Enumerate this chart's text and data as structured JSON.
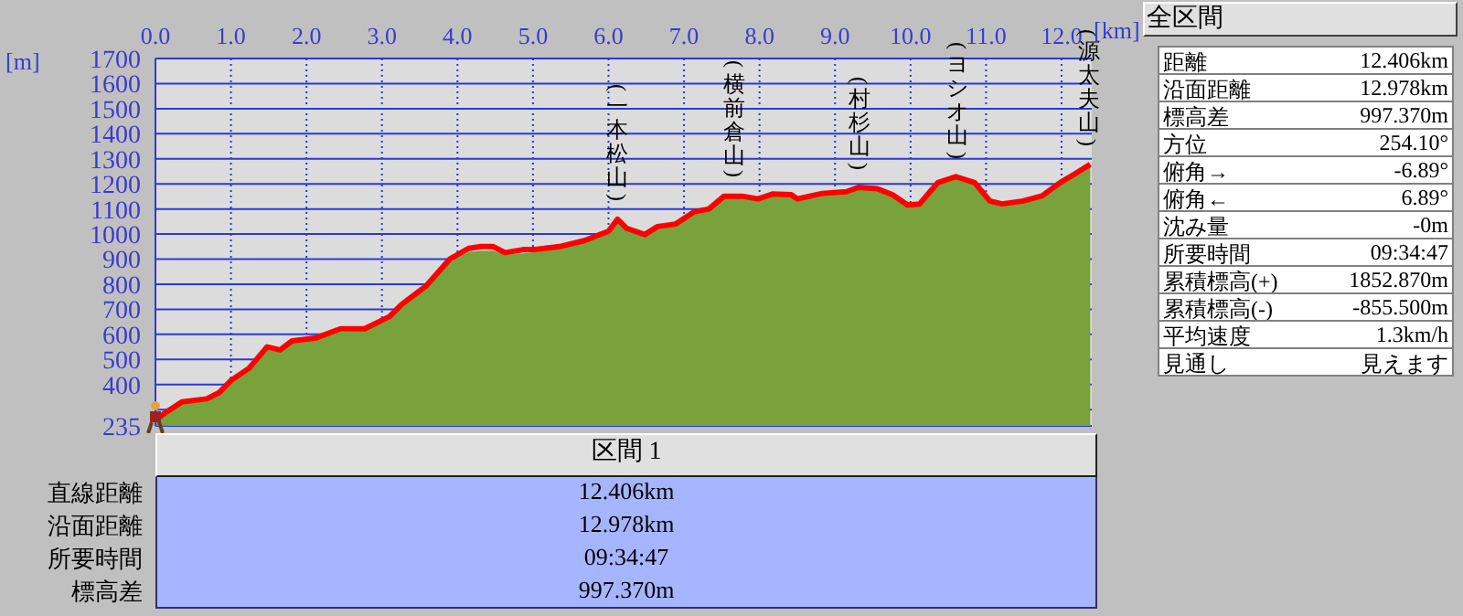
{
  "chart_data": [
    {
      "type": "line",
      "xlabel": "[km]",
      "ylabel": "[m]",
      "x": [
        0,
        0.11,
        0.35,
        0.68,
        0.84,
        1.0,
        1.24,
        1.48,
        1.65,
        1.81,
        2.13,
        2.45,
        2.77,
        3.1,
        3.26,
        3.58,
        3.9,
        4.15,
        4.31,
        4.47,
        4.63,
        4.87,
        5.03,
        5.35,
        5.68,
        6.0,
        6.12,
        6.24,
        6.48,
        6.65,
        6.89,
        7.13,
        7.33,
        7.53,
        7.77,
        7.98,
        8.18,
        8.42,
        8.5,
        8.83,
        9.15,
        9.31,
        9.56,
        9.76,
        9.96,
        10.12,
        10.36,
        10.6,
        10.85,
        11.05,
        11.21,
        11.49,
        11.74,
        11.98,
        12.18,
        12.38
      ],
      "series": [
        {
          "type": "area",
          "color": "#7aa23c",
          "values": [
            245,
            270,
            318,
            330,
            352,
            400,
            450,
            535,
            525,
            560,
            575,
            608,
            610,
            655,
            705,
            780,
            885,
            925,
            930,
            930,
            915,
            920,
            925,
            938,
            962,
            998,
            1050,
            1010,
            990,
            1018,
            1030,
            1075,
            1090,
            1140,
            1140,
            1128,
            1150,
            1145,
            1128,
            1150,
            1158,
            1175,
            1170,
            1145,
            1105,
            1108,
            1192,
            1218,
            1195,
            1120,
            1108,
            1120,
            1140,
            1192,
            1230,
            1268
          ]
        },
        {
          "type": "line",
          "color": "#ff0000",
          "values": [
            258,
            283,
            331,
            343,
            367,
            416,
            465,
            550,
            538,
            574,
            586,
            622,
            622,
            671,
            719,
            792,
            901,
            943,
            950,
            950,
            926,
            938,
            938,
            950,
            974,
            1011,
            1059,
            1023,
            998,
            1030,
            1040,
            1088,
            1100,
            1151,
            1151,
            1140,
            1160,
            1157,
            1140,
            1162,
            1169,
            1186,
            1181,
            1157,
            1116,
            1120,
            1205,
            1229,
            1205,
            1132,
            1120,
            1132,
            1152,
            1205,
            1241,
            1278
          ]
        }
      ],
      "xlim": [
        0,
        12.4
      ],
      "xticks": [
        {
          "value": 0,
          "label": "0.0"
        },
        {
          "value": 1,
          "label": "1.0"
        },
        {
          "value": 2,
          "label": "2.0"
        },
        {
          "value": 3,
          "label": "3.0"
        },
        {
          "value": 4,
          "label": "4.0"
        },
        {
          "value": 5,
          "label": "5.0"
        },
        {
          "value": 6,
          "label": "6.0"
        },
        {
          "value": 7,
          "label": "7.0"
        },
        {
          "value": 8,
          "label": "8.0"
        },
        {
          "value": 9,
          "label": "9.0"
        },
        {
          "value": 10,
          "label": "10.0"
        },
        {
          "value": 11,
          "label": "11.0"
        },
        {
          "value": 12,
          "label": "12.0"
        }
      ],
      "ylim": [
        235,
        1700
      ],
      "yticks": [
        235,
        {
          "value": 300,
          "label": null
        },
        400,
        500,
        600,
        700,
        800,
        900,
        1000,
        1100,
        1200,
        1300,
        1400,
        1500,
        1600,
        1700
      ],
      "grid": true,
      "marker": "none",
      "annotations": [
        {
          "text": "(一本松山)",
          "x": 6.12,
          "y": 1059
        },
        {
          "text": "(横前倉山)",
          "x": 7.67,
          "y": 1151
        },
        {
          "text": "(村杉山)",
          "x": 9.33,
          "y": 1186
        },
        {
          "text": "(ヨシオ山)",
          "x": 10.62,
          "y": 1229
        },
        {
          "text": "(源太夫山)",
          "x": 12.36,
          "y": 1278
        }
      ]
    },
    {
      "type": "other",
      "title": "全区間",
      "annotations": [
        "距離",
        "12.406km",
        "沿面距離",
        "12.978km",
        "標高差",
        "997.370m",
        "方位",
        "254.10°",
        "俯角→",
        "-6.89°",
        "俯角←",
        "6.89°",
        "沈み量",
        "-0m",
        "所要時間",
        "09:34:47",
        "累積標高(+)",
        "1852.870m",
        "累積標高(-)",
        "-855.500m",
        "平均速度",
        "1.3km/h",
        "見通し",
        "見えます"
      ]
    },
    {
      "type": "other",
      "title": "区間 1",
      "annotations": [
        "直線距離",
        "12.406km",
        "沿面距離",
        "12.978km",
        "所要時間",
        "09:34:47",
        "標高差",
        "997.370m"
      ]
    }
  ]
}
